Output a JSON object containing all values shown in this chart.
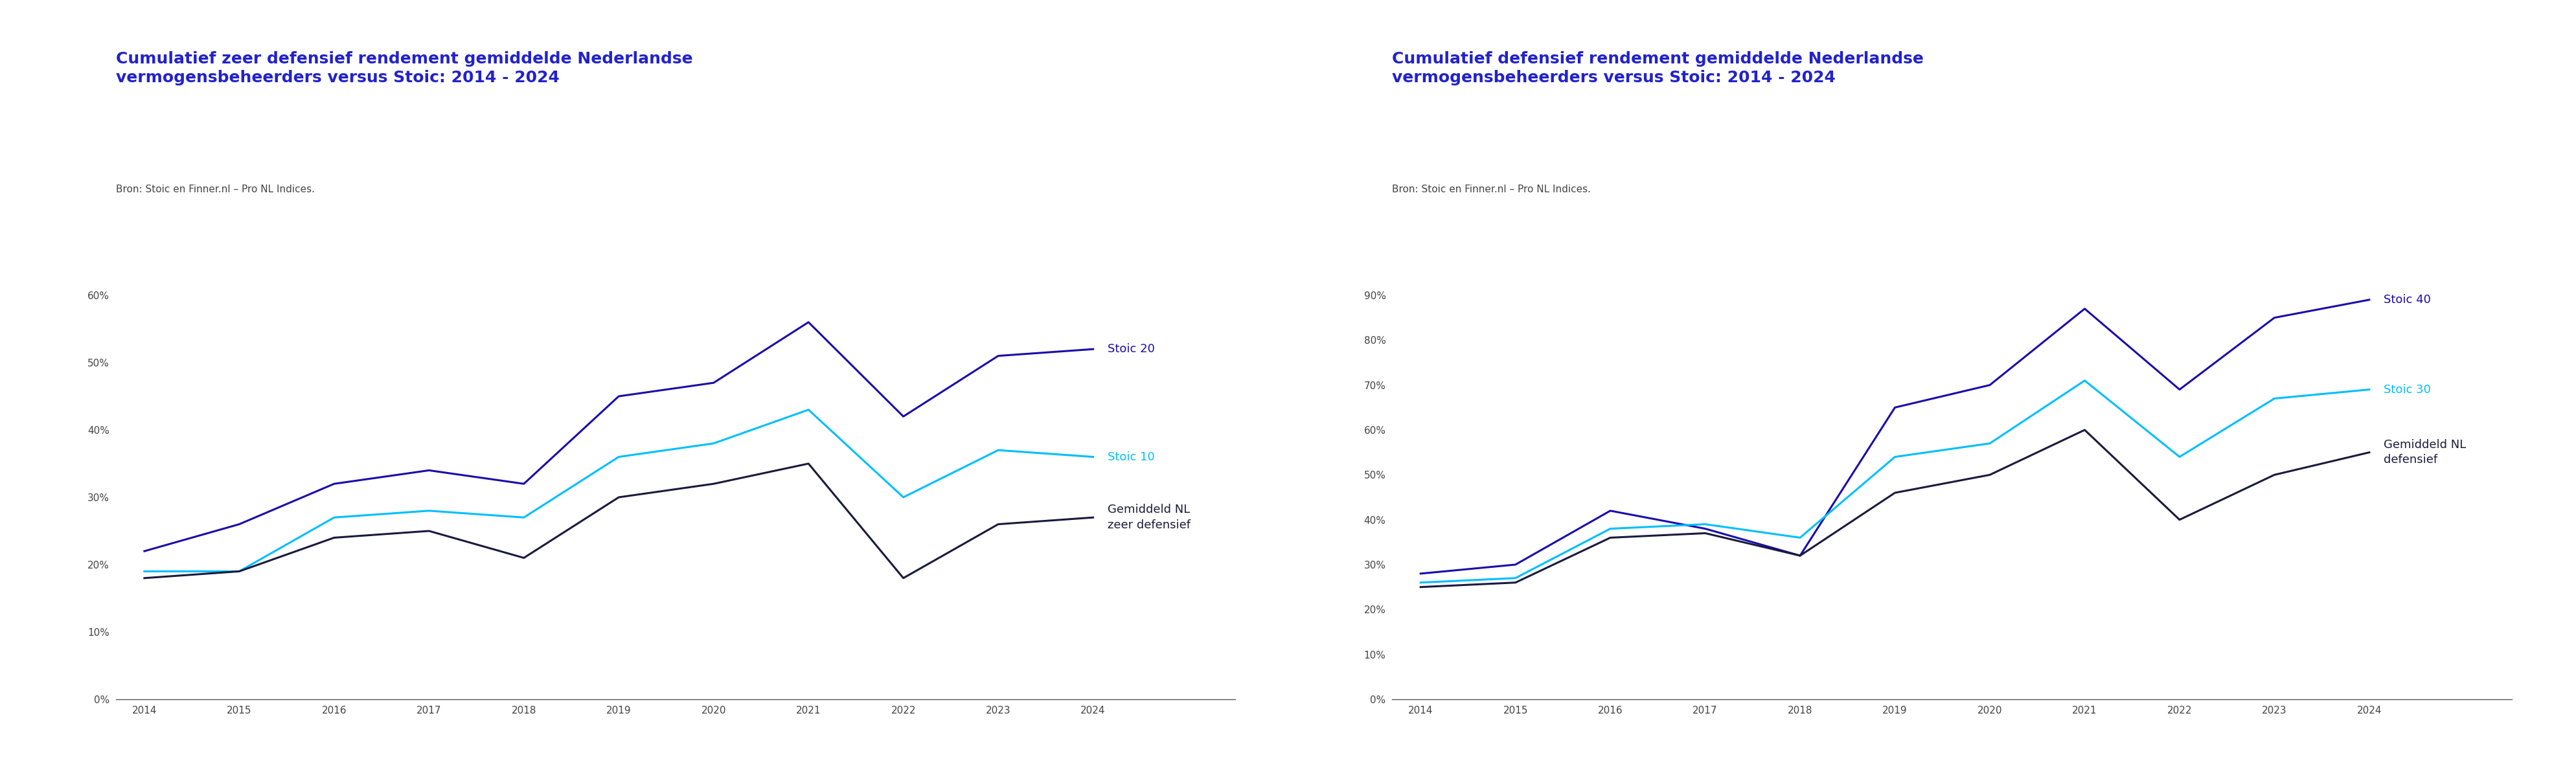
{
  "chart1": {
    "title_line1": "Cumulatief zeer defensief rendement gemiddelde Nederlandse",
    "title_line2": "vermogensbeheerders versus Stoic: 2014 - 2024",
    "source": "Bron: Stoic en Finner.nl – Pro NL Indices.",
    "years": [
      2014,
      2015,
      2016,
      2017,
      2018,
      2019,
      2020,
      2021,
      2022,
      2023,
      2024
    ],
    "stoic20": [
      22,
      26,
      32,
      34,
      32,
      45,
      47,
      56,
      42,
      51,
      52
    ],
    "stoic10": [
      19,
      19,
      27,
      28,
      27,
      36,
      38,
      43,
      30,
      37,
      36
    ],
    "gemiddeld": [
      18,
      19,
      24,
      25,
      21,
      30,
      32,
      35,
      18,
      26,
      27
    ],
    "stoic20_label": "Stoic 20",
    "stoic10_label": "Stoic 10",
    "gemiddeld_label": "Gemiddeld NL\nzeer defensief",
    "ylim": [
      0,
      60
    ],
    "yticks": [
      0,
      10,
      20,
      30,
      40,
      50,
      60
    ]
  },
  "chart2": {
    "title_line1": "Cumulatief defensief rendement gemiddelde Nederlandse",
    "title_line2": "vermogensbeheerders versus Stoic: 2014 - 2024",
    "source": "Bron: Stoic en Finner.nl – Pro NL Indices.",
    "years": [
      2014,
      2015,
      2016,
      2017,
      2018,
      2019,
      2020,
      2021,
      2022,
      2023,
      2024
    ],
    "stoic40": [
      28,
      30,
      42,
      38,
      32,
      65,
      70,
      87,
      69,
      85,
      89
    ],
    "stoic30": [
      26,
      27,
      38,
      39,
      36,
      54,
      57,
      71,
      54,
      67,
      69
    ],
    "gemiddeld": [
      25,
      26,
      36,
      37,
      32,
      46,
      50,
      60,
      40,
      50,
      55
    ],
    "stoic40_label": "Stoic 40",
    "stoic30_label": "Stoic 30",
    "gemiddeld_label": "Gemiddeld NL\ndefensief",
    "ylim": [
      0,
      90
    ],
    "yticks": [
      0,
      10,
      20,
      30,
      40,
      50,
      60,
      70,
      80,
      90
    ]
  },
  "colors": {
    "dark_blue": "#1a0dab",
    "cyan": "#00bfff",
    "dark_navy": "#1a1a3e",
    "title_color": "#2222cc",
    "source_color": "#444444",
    "background": "#ffffff"
  },
  "line_width": 2.2,
  "title_fontsize": 18,
  "source_fontsize": 11,
  "label_fontsize": 13,
  "tick_fontsize": 11
}
